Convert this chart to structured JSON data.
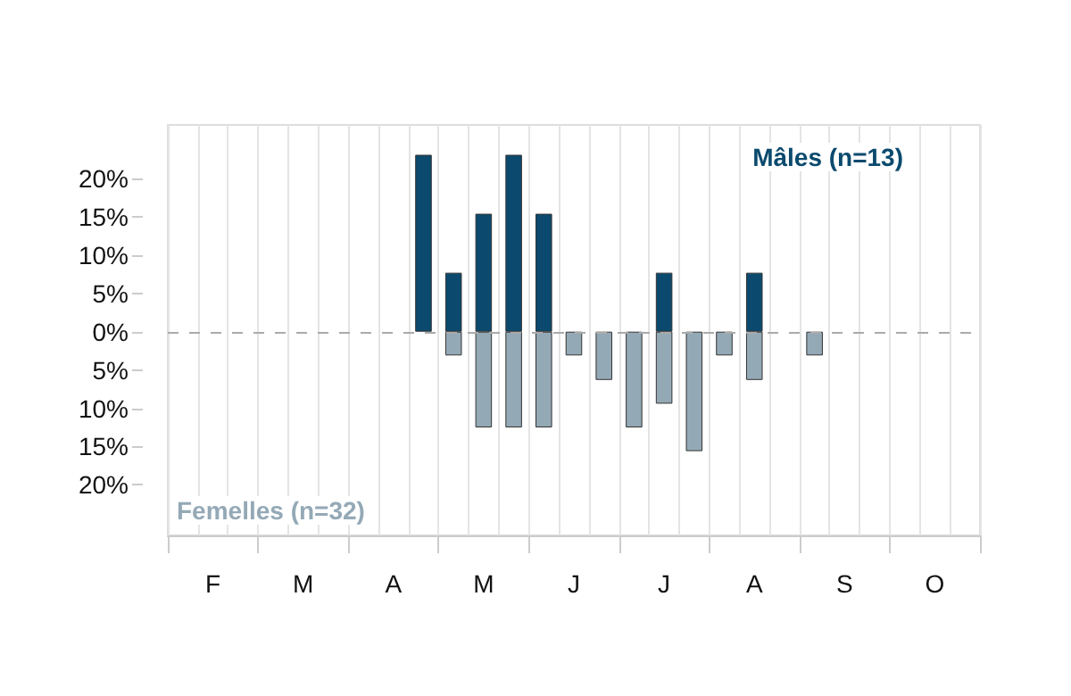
{
  "chart_data": {
    "type": "bar",
    "stacked": true,
    "categories": [
      null,
      "F",
      null,
      null,
      "M",
      null,
      null,
      "A",
      null,
      null,
      "M",
      null,
      null,
      "J",
      null,
      null,
      "J",
      null,
      null,
      "A",
      null,
      null,
      "S",
      null,
      null,
      "O",
      null
    ],
    "series": [
      {
        "name": "Mâles (n=13)",
        "color": "#0b4a6e",
        "values": [
          0,
          0,
          0,
          0,
          0,
          0,
          0,
          0,
          23.1,
          7.7,
          15.4,
          23.1,
          15.4,
          0,
          0,
          0,
          7.7,
          0,
          0,
          7.7,
          0,
          0,
          0,
          0,
          0,
          0,
          0
        ]
      },
      {
        "name": "Femelles (n=32)",
        "color": "#94a9b6",
        "values": [
          0,
          0,
          0,
          0,
          0,
          0,
          0,
          0,
          0,
          -3.1,
          -12.5,
          -12.5,
          -12.5,
          -3.1,
          -6.3,
          -12.5,
          -9.4,
          -15.6,
          -3.1,
          -6.3,
          0,
          -3.1,
          0,
          0,
          0,
          0,
          0
        ]
      }
    ],
    "ylim": [
      -26.6,
      27
    ],
    "yticks": [
      {
        "value": -20,
        "label": "20%"
      },
      {
        "value": -15,
        "label": "15%"
      },
      {
        "value": -10,
        "label": "10%"
      },
      {
        "value": -5,
        "label": "5%"
      },
      {
        "value": 0,
        "label": "0%"
      },
      {
        "value": 5,
        "label": "5%"
      },
      {
        "value": 10,
        "label": "10%"
      },
      {
        "value": 15,
        "label": "15%"
      },
      {
        "value": 20,
        "label": "20%"
      }
    ],
    "ref_lines": [
      {
        "axis": "y",
        "value": 0,
        "color": "#aaaaaa",
        "line_style": "dashed"
      }
    ],
    "grid": "x",
    "legend": false
  }
}
